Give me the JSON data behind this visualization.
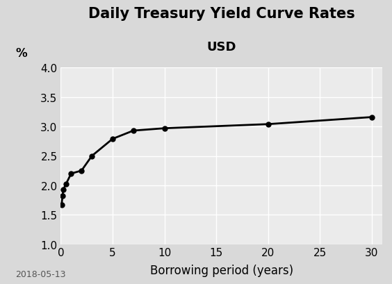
{
  "title_line1": "Daily Treasury Yield Curve Rates",
  "title_line2": "USD",
  "xlabel": "Borrowing period (years)",
  "ylabel": "%",
  "date_label": "2018-05-13",
  "x_values": [
    0.083,
    0.167,
    0.25,
    0.5,
    1,
    2,
    3,
    5,
    7,
    10,
    20,
    30
  ],
  "y_values": [
    1.67,
    1.82,
    1.93,
    2.02,
    2.2,
    2.25,
    2.5,
    2.79,
    2.93,
    2.97,
    3.04,
    3.16
  ],
  "xlim": [
    0,
    31
  ],
  "ylim": [
    1.0,
    4.0
  ],
  "xticks": [
    0,
    5,
    10,
    15,
    20,
    25,
    30
  ],
  "yticks": [
    1.0,
    1.5,
    2.0,
    2.5,
    3.0,
    3.5,
    4.0
  ],
  "line_color": "#000000",
  "marker_color": "#000000",
  "background_color": "#d9d9d9",
  "plot_bg_color": "#ebebeb",
  "grid_color": "#ffffff",
  "title_fontsize": 15,
  "subtitle_fontsize": 13,
  "label_fontsize": 12,
  "tick_fontsize": 11,
  "date_fontsize": 9,
  "ylabel_fontsize": 12
}
